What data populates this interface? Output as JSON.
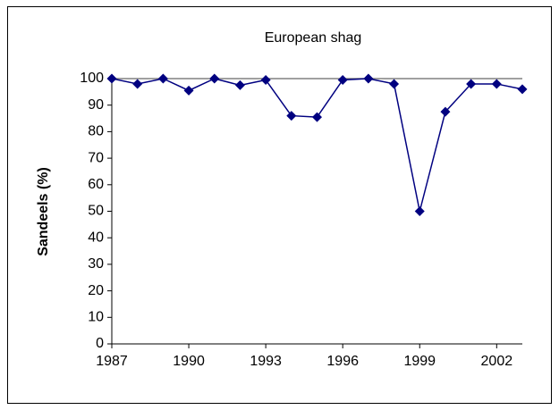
{
  "chart_data": {
    "type": "line",
    "title": "European shag",
    "ylabel": "Sandeels (%)",
    "x": [
      1987,
      1988,
      1989,
      1990,
      1991,
      1992,
      1993,
      1994,
      1995,
      1996,
      1997,
      1998,
      1999,
      2000,
      2001,
      2002,
      2003
    ],
    "series": [
      {
        "name": "European shag",
        "color": "#000080",
        "values": [
          100,
          98,
          100,
          95.5,
          100,
          97.5,
          99.5,
          86,
          85.5,
          99.5,
          100,
          98,
          50,
          87.5,
          98,
          98,
          96
        ]
      }
    ],
    "xlim": [
      1987,
      2003
    ],
    "xticks": [
      1987,
      1990,
      1993,
      1996,
      1999,
      2002
    ],
    "ylim": [
      0,
      100
    ],
    "yticks": [
      0,
      10,
      20,
      30,
      40,
      50,
      60,
      70,
      80,
      90,
      100
    ]
  }
}
